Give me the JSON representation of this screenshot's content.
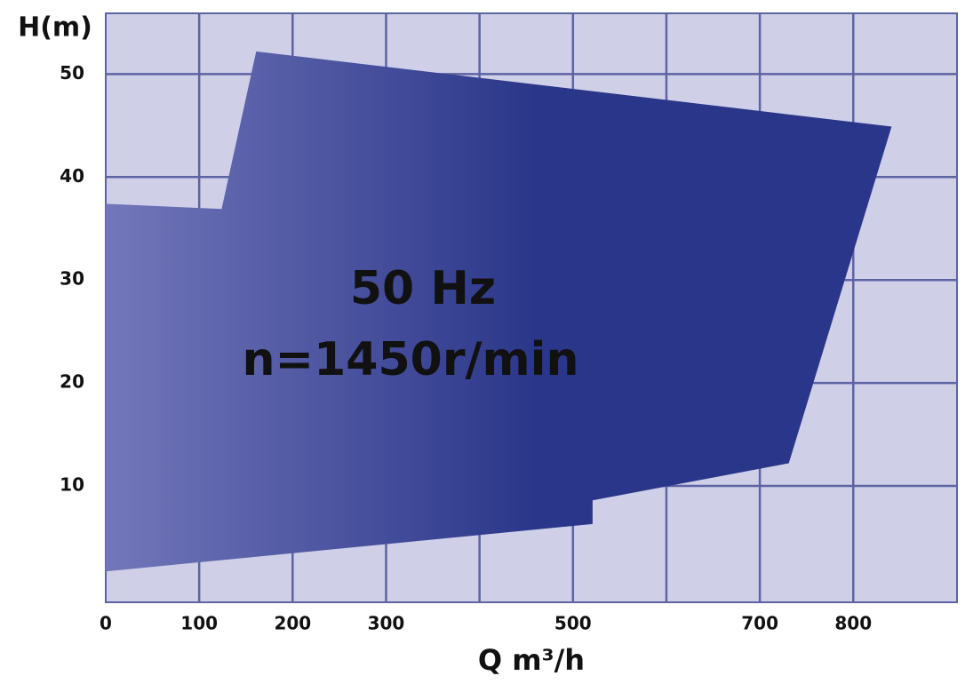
{
  "chart_data": {
    "type": "area-region",
    "annotations": [
      "50 Hz",
      "n=1450r/min"
    ],
    "xlabel": "Q m³/h",
    "ylabel": "H(m)",
    "x": [
      0,
      124,
      161,
      841,
      731,
      521,
      521,
      0
    ],
    "y": [
      37.4,
      36.9,
      52.2,
      44.9,
      12.2,
      8.6,
      6.3,
      1.7
    ],
    "color_start": "#7377ba",
    "color_end": "#2a3689",
    "xlim": [
      0,
      911
    ],
    "ylim": [
      -1.3,
      55.9
    ],
    "xticks": [
      0,
      100,
      200,
      300,
      500,
      700,
      800
    ],
    "xgrid": [
      100,
      200,
      300,
      400,
      500,
      600,
      700,
      800
    ],
    "yticks": [
      10,
      20,
      30,
      40,
      50
    ],
    "grid": true
  }
}
